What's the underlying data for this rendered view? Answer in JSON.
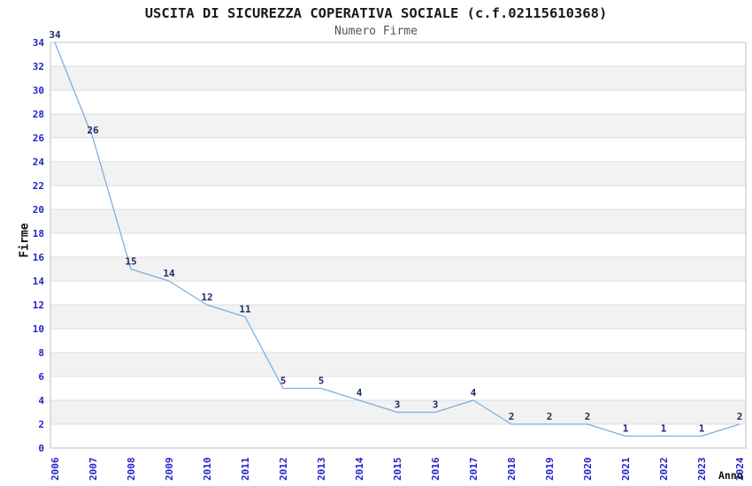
{
  "chart_data": {
    "type": "line",
    "title": "USCITA DI SICUREZZA COPERATIVA SOCIALE (c.f.02115610368)",
    "subtitle": "Numero Firme",
    "xlabel": "Anno",
    "ylabel": "Firme",
    "x": [
      "2006",
      "2007",
      "2008",
      "2009",
      "2010",
      "2011",
      "2012",
      "2013",
      "2014",
      "2015",
      "2016",
      "2017",
      "2018",
      "2019",
      "2020",
      "2021",
      "2022",
      "2023",
      "2024"
    ],
    "series": [
      {
        "name": "Numero Firme",
        "values": [
          34,
          26,
          15,
          14,
          12,
          11,
          5,
          5,
          4,
          3,
          3,
          4,
          2,
          2,
          2,
          1,
          1,
          1,
          2
        ]
      }
    ],
    "ylim": [
      0,
      34
    ],
    "ytick_step": 2,
    "grid": true,
    "bands": "alternating horizontal gray bands of 2 units, gray from 2-4, 6-8, ... 30-32",
    "legend_position": "none",
    "data_labels": "shown above each point",
    "colors": {
      "line": "#7CAFE2",
      "tick_label": "#2222CC",
      "data_label": "#26266B",
      "band": "#F2F2F2",
      "grid": "#DEDEDE",
      "border": "#C2C2C2",
      "title": "#1A1A1A",
      "subtitle": "#555555",
      "axis_label": "#111111"
    }
  }
}
